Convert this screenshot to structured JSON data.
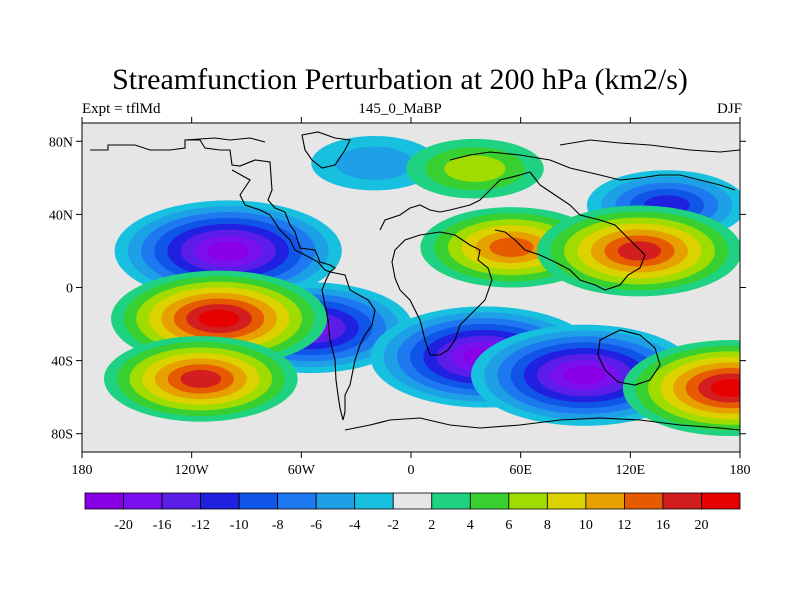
{
  "title": "Streamfunction Perturbation at 200 hPa (km2/s)",
  "left_label": "Expt = tflMd",
  "center_label": "145_0_MaBP",
  "right_label": "DJF",
  "y_ticks": [
    {
      "label": "80N",
      "lat": 80
    },
    {
      "label": "40N",
      "lat": 40
    },
    {
      "label": "0",
      "lat": 0
    },
    {
      "label": "40S",
      "lat": -40
    },
    {
      "label": "80S",
      "lat": -80
    }
  ],
  "x_ticks": [
    {
      "label": "180",
      "lon": -180
    },
    {
      "label": "120W",
      "lon": -120
    },
    {
      "label": "60W",
      "lon": -60
    },
    {
      "label": "0",
      "lon": 0
    },
    {
      "label": "60E",
      "lon": 60
    },
    {
      "label": "120E",
      "lon": 120
    },
    {
      "label": "180",
      "lon": 180
    }
  ],
  "colorbar": {
    "labels": [
      "-20",
      "-16",
      "-12",
      "-10",
      "-8",
      "-6",
      "-4",
      "-2",
      "2",
      "4",
      "6",
      "8",
      "10",
      "12",
      "16",
      "20"
    ],
    "colors": [
      "#8a00e6",
      "#7a10f0",
      "#5a1ee8",
      "#2020e0",
      "#1055e8",
      "#1e78f0",
      "#1ea0e6",
      "#18c0e0",
      "#e6e6e6",
      "#1ed282",
      "#38d030",
      "#a0dc00",
      "#dcd200",
      "#e6a000",
      "#e65a00",
      "#d21e1e",
      "#e60000"
    ]
  },
  "chart_data": {
    "type": "heatmap",
    "projection": "cylindrical-equidistant",
    "lon_range": [
      -180,
      180
    ],
    "lat_range": [
      -90,
      90
    ],
    "contour_levels": [
      -20,
      -16,
      -12,
      -10,
      -8,
      -6,
      -4,
      -2,
      2,
      4,
      6,
      8,
      10,
      12,
      16,
      20
    ],
    "features": [
      {
        "kind": "low",
        "lon": -100,
        "lat": 20,
        "value": -22
      },
      {
        "kind": "low",
        "lon": -55,
        "lat": -22,
        "value": -18
      },
      {
        "kind": "low",
        "lon": 40,
        "lat": -38,
        "value": -22
      },
      {
        "kind": "low",
        "lon": 95,
        "lat": -48,
        "value": -22
      },
      {
        "kind": "low",
        "lon": -20,
        "lat": 68,
        "value": -4
      },
      {
        "kind": "low",
        "lon": 140,
        "lat": 45,
        "value": -10
      },
      {
        "kind": "high",
        "lon": -105,
        "lat": -17,
        "value": 20
      },
      {
        "kind": "high",
        "lon": -115,
        "lat": -50,
        "value": 16
      },
      {
        "kind": "high",
        "lon": 55,
        "lat": 22,
        "value": 14
      },
      {
        "kind": "high",
        "lon": 125,
        "lat": 20,
        "value": 18
      },
      {
        "kind": "high",
        "lon": 175,
        "lat": -55,
        "value": 20
      },
      {
        "kind": "high",
        "lon": 35,
        "lat": 65,
        "value": 6
      }
    ]
  }
}
